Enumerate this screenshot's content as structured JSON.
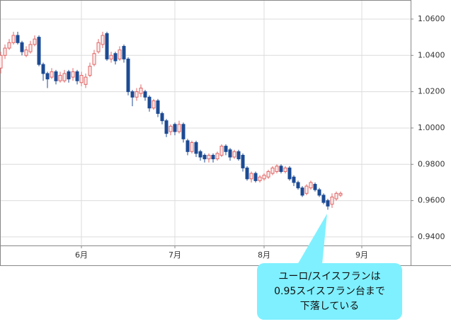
{
  "chart_data": {
    "type": "candlestick",
    "x": [
      0,
      1,
      2,
      3,
      4,
      5,
      6,
      7,
      8,
      9,
      10,
      11,
      12,
      13,
      14,
      15,
      16,
      17,
      18,
      19,
      20,
      21,
      22,
      23,
      24,
      25,
      26,
      27,
      28,
      29,
      30,
      31,
      32,
      33,
      34,
      35,
      36,
      37,
      38,
      39,
      40,
      41,
      42,
      43,
      44,
      45,
      46,
      47,
      48,
      49,
      50,
      51,
      52,
      53,
      54,
      55,
      56,
      57,
      58,
      59,
      60,
      61,
      62,
      63,
      64,
      65,
      66,
      67,
      68,
      69,
      70,
      71,
      72,
      73,
      74,
      75,
      76,
      77,
      78,
      79,
      80
    ],
    "open": [
      1.033,
      1.04,
      1.044,
      1.047,
      1.051,
      1.047,
      1.04,
      1.042,
      1.046,
      1.05,
      1.035,
      1.03,
      1.028,
      1.031,
      1.026,
      1.026,
      1.031,
      1.028,
      1.031,
      1.025,
      1.024,
      1.029,
      1.035,
      1.042,
      1.046,
      1.052,
      1.038,
      1.041,
      1.038,
      1.045,
      1.038,
      1.02,
      1.017,
      1.019,
      1.02,
      1.017,
      1.011,
      1.015,
      1.008,
      1.004,
      0.998,
      1.002,
      0.998,
      1.002,
      0.993,
      0.987,
      0.992,
      0.987,
      0.985,
      0.983,
      0.985,
      0.983,
      0.985,
      0.99,
      0.988,
      0.984,
      0.987,
      0.985,
      0.978,
      0.972,
      0.975,
      0.971,
      0.972,
      0.973,
      0.975,
      0.976,
      0.979,
      0.976,
      0.978,
      0.973,
      0.97,
      0.967,
      0.964,
      0.967,
      0.969,
      0.966,
      0.963,
      0.96,
      0.958,
      0.961,
      0.963
    ],
    "high": [
      1.042,
      1.046,
      1.049,
      1.053,
      1.053,
      1.048,
      1.045,
      1.048,
      1.051,
      1.051,
      1.036,
      1.031,
      1.033,
      1.032,
      1.031,
      1.032,
      1.032,
      1.033,
      1.032,
      1.031,
      1.03,
      1.036,
      1.043,
      1.049,
      1.053,
      1.053,
      1.042,
      1.042,
      1.045,
      1.046,
      1.039,
      1.021,
      1.022,
      1.024,
      1.021,
      1.018,
      1.016,
      1.016,
      1.009,
      1.005,
      1.002,
      1.003,
      1.004,
      1.003,
      0.994,
      0.993,
      0.993,
      0.988,
      0.986,
      0.986,
      0.986,
      0.987,
      0.991,
      0.991,
      0.989,
      0.988,
      0.988,
      0.986,
      0.979,
      0.976,
      0.976,
      0.974,
      0.975,
      0.977,
      0.979,
      0.98,
      0.98,
      0.979,
      0.979,
      0.974,
      0.971,
      0.968,
      0.969,
      0.971,
      0.97,
      0.967,
      0.964,
      0.961,
      0.964,
      0.965,
      0.965
    ],
    "low": [
      1.03,
      1.038,
      1.043,
      1.046,
      1.046,
      1.04,
      1.039,
      1.041,
      1.045,
      1.034,
      1.026,
      1.022,
      1.027,
      1.024,
      1.025,
      1.025,
      1.025,
      1.026,
      1.024,
      1.023,
      1.022,
      1.028,
      1.034,
      1.041,
      1.044,
      1.037,
      1.036,
      1.035,
      1.037,
      1.036,
      1.018,
      1.012,
      1.015,
      1.017,
      1.015,
      1.009,
      1.01,
      1.006,
      1.002,
      0.995,
      0.996,
      0.996,
      0.997,
      0.992,
      0.985,
      0.986,
      0.984,
      0.982,
      0.981,
      0.981,
      0.981,
      0.982,
      0.984,
      0.985,
      0.982,
      0.983,
      0.982,
      0.976,
      0.971,
      0.97,
      0.97,
      0.97,
      0.971,
      0.972,
      0.974,
      0.975,
      0.975,
      0.975,
      0.971,
      0.968,
      0.966,
      0.962,
      0.963,
      0.966,
      0.965,
      0.962,
      0.958,
      0.955,
      0.956,
      0.96,
      0.962
    ],
    "close": [
      1.04,
      1.044,
      1.047,
      1.051,
      1.047,
      1.042,
      1.043,
      1.046,
      1.049,
      1.035,
      1.03,
      1.027,
      1.031,
      1.026,
      1.029,
      1.03,
      1.027,
      1.031,
      1.026,
      1.029,
      1.028,
      1.034,
      1.041,
      1.047,
      1.051,
      1.038,
      1.04,
      1.037,
      1.043,
      1.038,
      1.02,
      1.017,
      1.02,
      1.022,
      1.017,
      1.011,
      1.015,
      1.008,
      1.004,
      0.997,
      1.001,
      0.998,
      1.002,
      0.994,
      0.987,
      0.992,
      0.986,
      0.984,
      0.983,
      0.985,
      0.983,
      0.986,
      0.99,
      0.987,
      0.984,
      0.987,
      0.983,
      0.978,
      0.972,
      0.975,
      0.971,
      0.973,
      0.974,
      0.976,
      0.978,
      0.979,
      0.976,
      0.978,
      0.972,
      0.97,
      0.967,
      0.963,
      0.968,
      0.97,
      0.966,
      0.963,
      0.959,
      0.957,
      0.962,
      0.964,
      0.964
    ],
    "up_color": "#e06666",
    "down_color": "#1d4b94",
    "xlim": [
      -0.17,
      96.5
    ],
    "ylim": [
      0.9353,
      1.0705
    ],
    "xticks": [
      {
        "value": 19,
        "label": "6月"
      },
      {
        "value": 41,
        "label": "7月"
      },
      {
        "value": 62,
        "label": "8月"
      },
      {
        "value": 85,
        "label": "9月"
      }
    ],
    "yticks": [
      {
        "value": 0.94,
        "label": "0.9400"
      },
      {
        "value": 0.96,
        "label": "0.9600"
      },
      {
        "value": 0.98,
        "label": "0.9800"
      },
      {
        "value": 1.0,
        "label": "1.0000"
      },
      {
        "value": 1.02,
        "label": "1.0200"
      },
      {
        "value": 1.04,
        "label": "1.0400"
      },
      {
        "value": 1.06,
        "label": "1.0600"
      }
    ],
    "grid": true,
    "annotation": [
      "ユーロ/スイスフランは",
      "0.95スイスフラン台まで",
      "下落している"
    ]
  }
}
